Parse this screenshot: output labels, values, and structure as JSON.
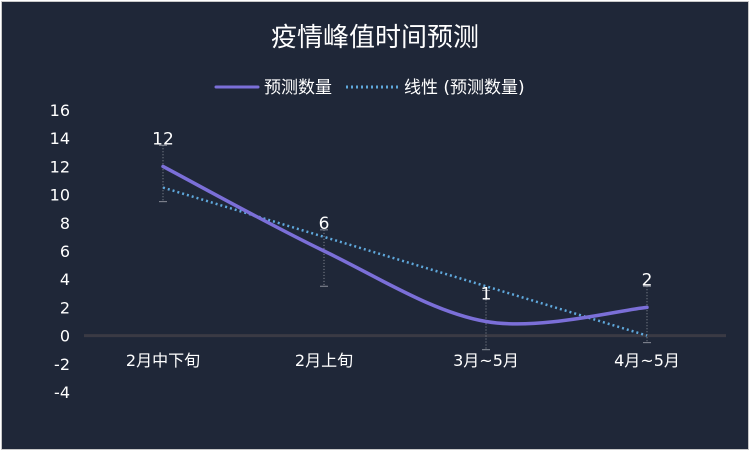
{
  "chart_data": {
    "type": "line",
    "title": "疫情峰值时间预测",
    "categories": [
      "2月中下旬",
      "2月上旬",
      "3月~5月",
      "4月~5月"
    ],
    "series": [
      {
        "name": "预测数量",
        "values": [
          12,
          6,
          1,
          2
        ],
        "data_labels": [
          "12",
          "6",
          "1",
          "2"
        ],
        "error_low": [
          9.5,
          3.5,
          -1.0,
          -0.5
        ],
        "error_high": [
          13.5,
          7.5,
          3.2,
          3.5
        ],
        "color": "#7b6fd8",
        "style": "solid-smooth"
      },
      {
        "name": "线性 (预测数量)",
        "values": [
          10.5,
          7.0,
          3.5,
          0.0
        ],
        "color": "#5fa8dc",
        "style": "dotted"
      }
    ],
    "y_ticks": [
      "16",
      "14",
      "12",
      "10",
      "8",
      "6",
      "4",
      "2",
      "0",
      "-2",
      "-4"
    ],
    "ylim": [
      -4,
      16
    ],
    "grid": false,
    "legend_position": "top-center",
    "colors": {
      "background": "#1f2738",
      "text": "#ffffff",
      "axis": "#3a3a44",
      "error_bar": "#8a8f99"
    }
  }
}
